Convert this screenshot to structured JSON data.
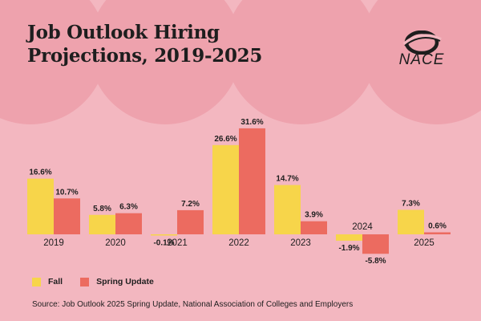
{
  "title": "Job Outlook Hiring\nProjections, 2019-2025",
  "logo_text": "NACE",
  "colors": {
    "background": "#f3b7c0",
    "decoration": "#eea2ad",
    "fall": "#f7d54a",
    "spring": "#ec6b60",
    "text": "#1e1e1e"
  },
  "chart_data": {
    "type": "bar",
    "categories": [
      "2019",
      "2020",
      "2021",
      "2022",
      "2023",
      "2024",
      "2025"
    ],
    "series": [
      {
        "name": "Fall",
        "values": [
          16.6,
          5.8,
          -0.1,
          26.6,
          14.7,
          -1.9,
          7.3
        ],
        "labels": [
          "16.6%",
          "5.8%",
          "-0.1%",
          "26.6%",
          "14.7%",
          "-1.9%",
          "7.3%"
        ]
      },
      {
        "name": "Spring Update",
        "values": [
          10.7,
          6.3,
          7.2,
          31.6,
          3.9,
          -5.8,
          0.6
        ],
        "labels": [
          "10.7%",
          "6.3%",
          "7.2%",
          "31.6%",
          "3.9%",
          "-5.8%",
          "0.6%"
        ]
      }
    ],
    "legend_position": "bottom-left",
    "grid": false
  },
  "legend": {
    "fall": "Fall",
    "spring": "Spring Update"
  },
  "source": "Source: Job Outlook 2025 Spring Update, National Association of Colleges and Employers"
}
